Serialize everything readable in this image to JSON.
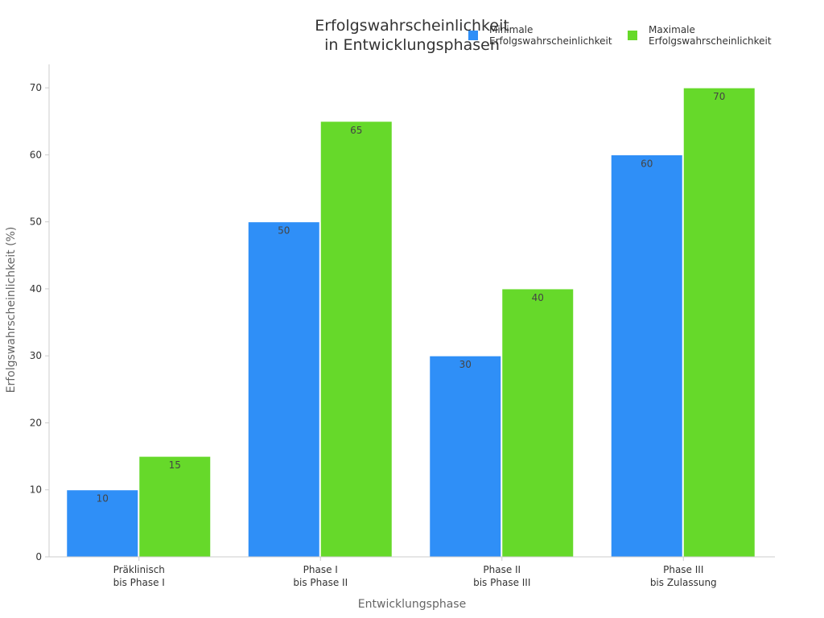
{
  "chart_data": {
    "type": "bar",
    "title": "Erfolgswahrscheinlichkeit\nin Entwicklungsphasen",
    "xlabel": "Entwicklungsphase",
    "ylabel": "Erfolgswahrscheinlichkeit (%)",
    "categories": [
      "Präklinisch\nbis Phase I",
      "Phase I\nbis Phase II",
      "Phase II\nbis Phase III",
      "Phase III\nbis Zulassung"
    ],
    "series": [
      {
        "name": "Minimale\nErfolgswahrscheinlichkeit",
        "values": [
          10,
          50,
          30,
          60
        ],
        "color": "#2f8ff7"
      },
      {
        "name": "Maximale\nErfolgswahrscheinlichkeit",
        "values": [
          15,
          65,
          40,
          70
        ],
        "color": "#66d92a"
      }
    ],
    "ylim": [
      0,
      73.5
    ],
    "yticks": [
      "0",
      "10",
      "20",
      "30",
      "40",
      "50",
      "60",
      "70"
    ],
    "grid": false,
    "legend": "top-right"
  }
}
